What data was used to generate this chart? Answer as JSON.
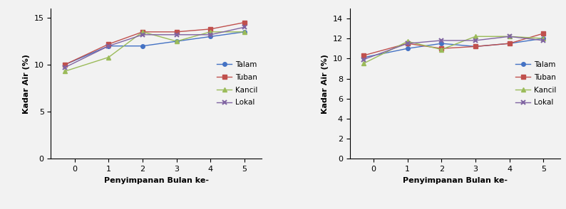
{
  "x": [
    -0.3,
    1,
    2,
    3,
    4,
    5
  ],
  "xtick_vals": [
    0,
    1,
    2,
    3,
    4,
    5
  ],
  "chart1": {
    "ylabel": "Kadar Air (%)",
    "xlabel": "Penyimpanan Bulan ke-",
    "ylim": [
      0,
      16
    ],
    "yticks": [
      0,
      5,
      10,
      15
    ],
    "xlim": [
      -0.7,
      5.5
    ],
    "series": {
      "Talam": [
        10.0,
        12.0,
        12.0,
        12.5,
        13.0,
        13.5
      ],
      "Tuban": [
        10.0,
        12.2,
        13.5,
        13.5,
        13.8,
        14.5
      ],
      "Kancil": [
        9.3,
        10.8,
        13.5,
        12.5,
        13.5,
        13.5
      ],
      "Lokal": [
        9.7,
        12.0,
        13.2,
        13.2,
        13.2,
        14.0
      ]
    }
  },
  "chart2": {
    "ylabel": "Kadar Air (%)",
    "xlabel": "Penyimpanan Bulan ke-",
    "ylim": [
      0,
      15
    ],
    "yticks": [
      0,
      2,
      4,
      6,
      8,
      10,
      12,
      14
    ],
    "xlim": [
      -0.7,
      5.5
    ],
    "series": {
      "Talam": [
        10.1,
        11.0,
        11.5,
        11.2,
        11.5,
        12.0
      ],
      "Tuban": [
        10.3,
        11.5,
        11.0,
        11.2,
        11.5,
        12.5
      ],
      "Kancil": [
        9.5,
        11.7,
        10.9,
        12.2,
        12.2,
        12.0
      ],
      "Lokal": [
        9.9,
        11.5,
        11.8,
        11.8,
        12.2,
        11.8
      ]
    }
  },
  "colors": {
    "Talam": "#4472C4",
    "Tuban": "#C0504D",
    "Kancil": "#9BBB59",
    "Lokal": "#8064A2"
  },
  "markers": {
    "Talam": "o",
    "Tuban": "s",
    "Kancil": "^",
    "Lokal": "x"
  },
  "legend_order": [
    "Talam",
    "Tuban",
    "Kancil",
    "Lokal"
  ],
  "background_color": "#f2f2f2"
}
